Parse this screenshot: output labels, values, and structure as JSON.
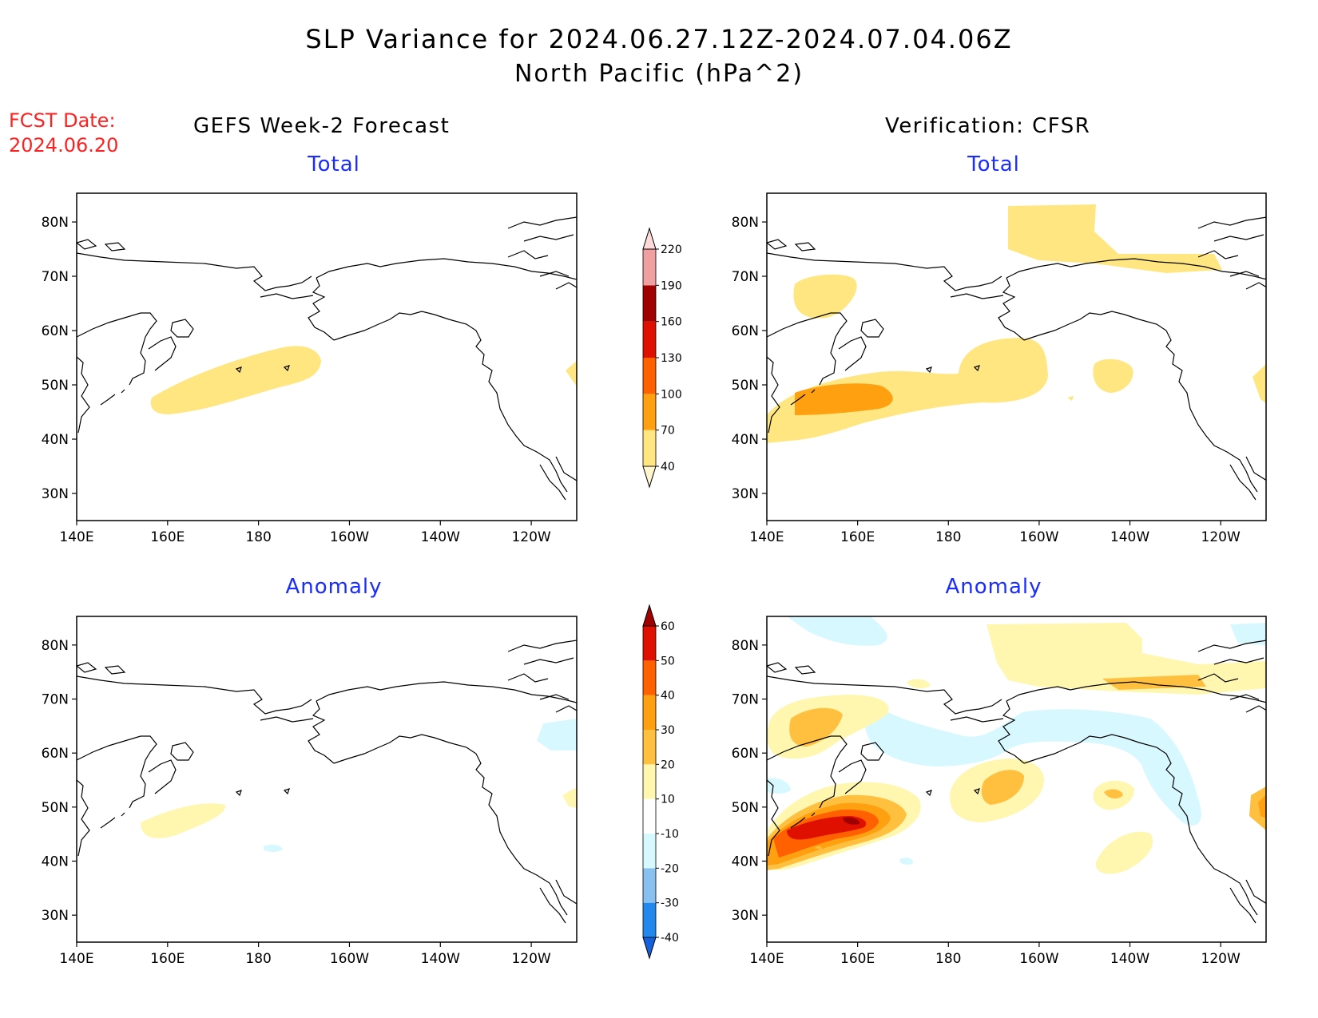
{
  "title": "SLP Variance for 2024.06.27.12Z-2024.07.04.06Z",
  "subtitle": "North Pacific (hPa^2)",
  "fcst_label": "FCST Date:",
  "fcst_date": "2024.06.20",
  "left_heading": "GEFS Week-2 Forecast",
  "right_heading": "Verification: CFSR",
  "panels": [
    {
      "title": "Total"
    },
    {
      "title": "Total"
    },
    {
      "title": "Anomaly"
    },
    {
      "title": "Anomaly"
    }
  ],
  "lat_ticks": [
    "80N",
    "70N",
    "60N",
    "50N",
    "40N",
    "30N"
  ],
  "lon_ticks": [
    "140E",
    "160E",
    "180",
    "160W",
    "140W",
    "120W"
  ],
  "colorbar_total": {
    "levels": [
      "40",
      "70",
      "100",
      "130",
      "160",
      "190",
      "220"
    ],
    "colors": [
      "#fff6d0",
      "#ffe680",
      "#ffa010",
      "#ff6000",
      "#e01000",
      "#a00000",
      "#f0a0a0",
      "#ffdada"
    ]
  },
  "colorbar_anomaly": {
    "levels": [
      "-40",
      "-30",
      "-20",
      "-10",
      "10",
      "20",
      "30",
      "40",
      "50",
      "60"
    ],
    "colors": [
      "#1560dd",
      "#2288ee",
      "#88c0f0",
      "#d8f8ff",
      "#ffffff",
      "#fff6b0",
      "#ffc040",
      "#ffa010",
      "#ff6000",
      "#e01000",
      "#a00000"
    ]
  }
}
